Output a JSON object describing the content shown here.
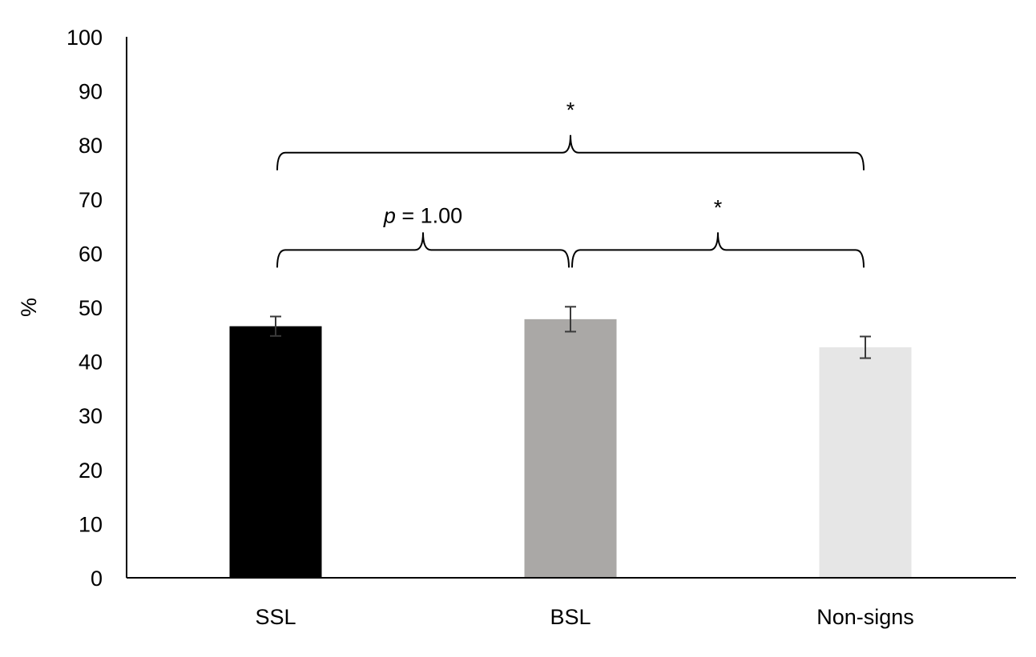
{
  "chart_data": {
    "type": "bar",
    "categories": [
      "SSL",
      "BSL",
      "Non-signs"
    ],
    "values": [
      46.5,
      47.8,
      42.6
    ],
    "error": [
      1.8,
      2.3,
      2.0
    ],
    "colors": [
      "#000000",
      "#aaa8a6",
      "#e6e6e6"
    ],
    "ylabel": "%",
    "ylim": [
      0,
      100
    ],
    "yticks": [
      0,
      10,
      20,
      30,
      40,
      50,
      60,
      70,
      80,
      90,
      100
    ],
    "grid": false,
    "legend": "none",
    "comparisons": [
      {
        "from": 0,
        "to": 1,
        "label_prefix": "p",
        "label_suffix": " = 1.00",
        "level": 60
      },
      {
        "from": 1,
        "to": 2,
        "label": "*",
        "level": 60
      },
      {
        "from": 0,
        "to": 2,
        "label": "*",
        "level": 78
      }
    ]
  }
}
